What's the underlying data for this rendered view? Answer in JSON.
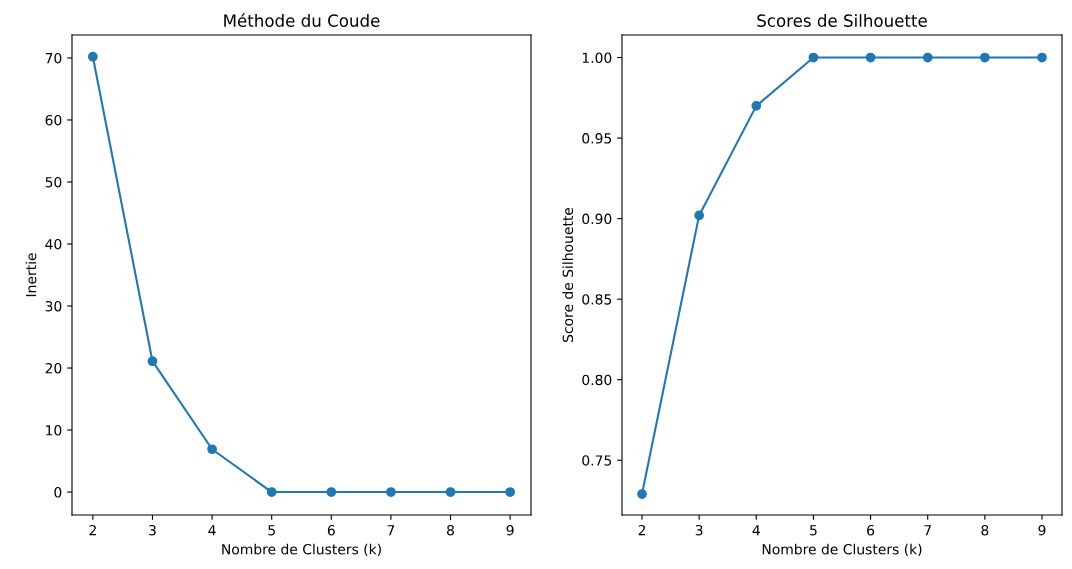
{
  "chart_data": [
    {
      "type": "line",
      "title": "Méthode du Coude",
      "xlabel": "Nombre de Clusters (k)",
      "ylabel": "Inertie",
      "x": [
        2,
        3,
        4,
        5,
        6,
        7,
        8,
        9
      ],
      "series": [
        {
          "color": "#1f77b4",
          "values": [
            70.2,
            21.1,
            6.9,
            0,
            0,
            0,
            0,
            0
          ]
        }
      ],
      "xlim": [
        1.65,
        9.35
      ],
      "xticks": [
        2,
        3,
        4,
        5,
        6,
        7,
        8,
        9
      ],
      "ylim": [
        -3.7,
        73.7
      ],
      "yticks": [
        0,
        10,
        20,
        30,
        40,
        50,
        60,
        70
      ],
      "marker": "circle",
      "line_style": "solid"
    },
    {
      "type": "line",
      "title": "Scores de Silhouette",
      "xlabel": "Nombre de Clusters (k)",
      "ylabel": "Score de Silhouette",
      "x": [
        2,
        3,
        4,
        5,
        6,
        7,
        8,
        9
      ],
      "series": [
        {
          "color": "#1f77b4",
          "values": [
            0.729,
            0.902,
            0.97,
            1.0,
            1.0,
            1.0,
            1.0,
            1.0
          ]
        }
      ],
      "xlim": [
        1.65,
        9.35
      ],
      "xticks": [
        2,
        3,
        4,
        5,
        6,
        7,
        8,
        9
      ],
      "ylim": [
        0.716,
        1.014
      ],
      "yticks": [
        {
          "value": 0.75,
          "label": "0.75"
        },
        {
          "value": 0.8,
          "label": "0.80"
        },
        {
          "value": 0.85,
          "label": "0.85"
        },
        {
          "value": 0.9,
          "label": "0.90"
        },
        {
          "value": 0.95,
          "label": "0.95"
        },
        {
          "value": 1.0,
          "label": "1.00"
        }
      ],
      "marker": "circle",
      "line_style": "solid"
    }
  ]
}
